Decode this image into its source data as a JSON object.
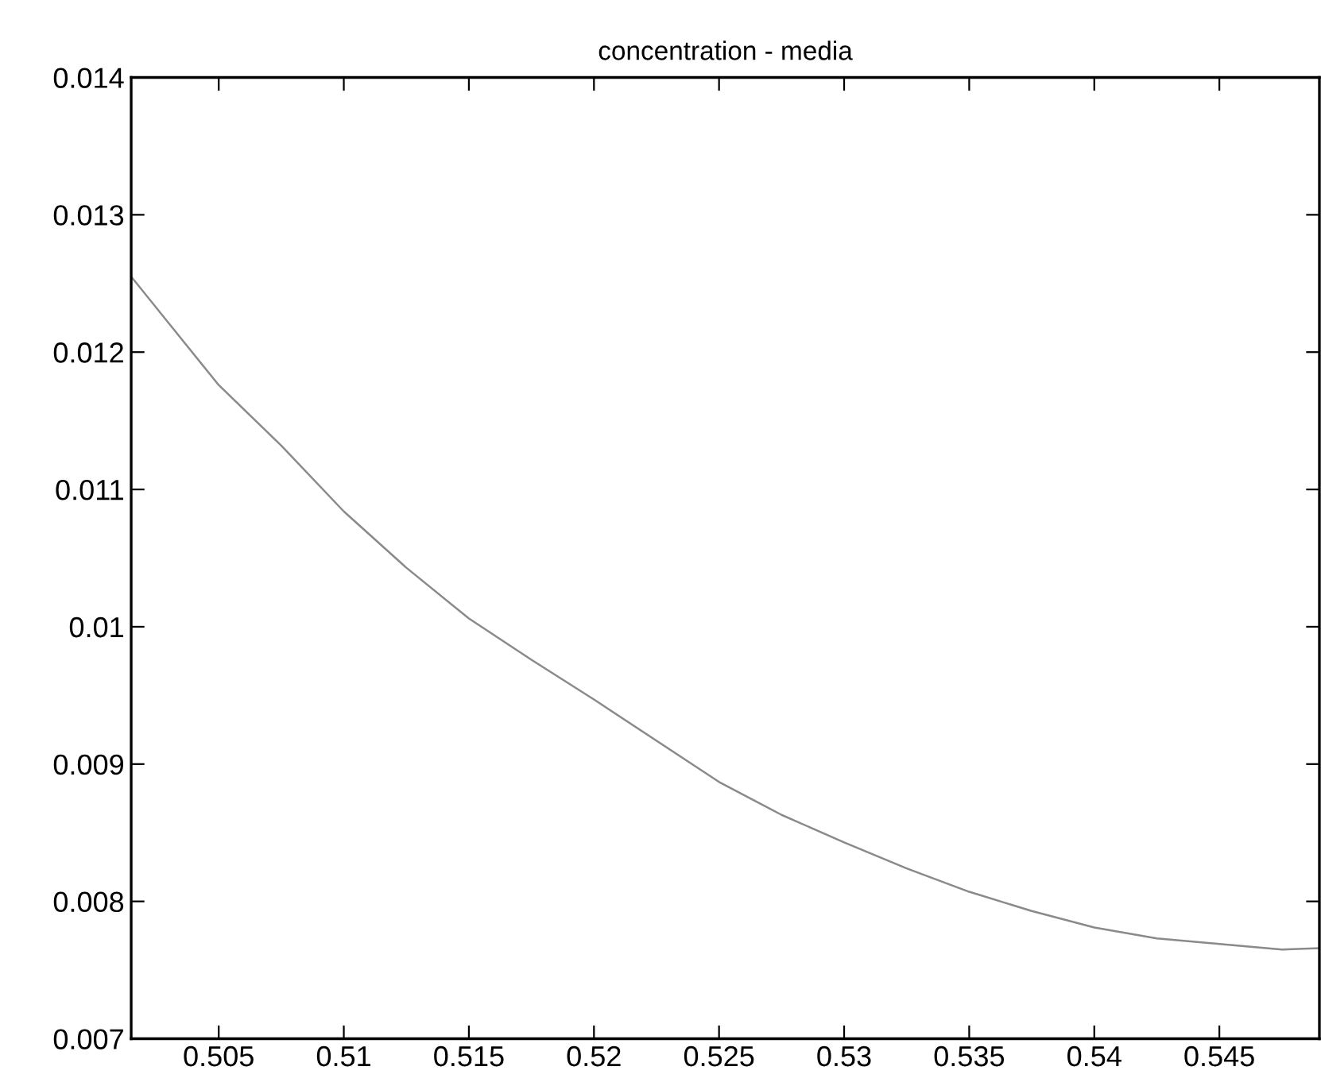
{
  "chart_data": {
    "type": "line",
    "title": "concentration - media",
    "series": [
      {
        "color": "#8a8a8a",
        "x": [
          0.5015,
          0.505,
          0.5075,
          0.51,
          0.5125,
          0.515,
          0.5175,
          0.52,
          0.525,
          0.5275,
          0.53,
          0.5325,
          0.535,
          0.5375,
          0.54,
          0.5425,
          0.545,
          0.5475,
          0.549
        ],
        "values": [
          0.01255,
          0.01176,
          0.01132,
          0.01084,
          0.01043,
          0.01006,
          0.00976,
          0.00947,
          0.00887,
          0.00863,
          0.00843,
          0.00824,
          0.00807,
          0.00793,
          0.00781,
          0.00773,
          0.00769,
          0.00765,
          0.00766
        ]
      }
    ],
    "xlim": [
      0.5015,
      0.549
    ],
    "ylim": [
      0.007,
      0.014
    ],
    "xticks": [
      0.505,
      0.51,
      0.515,
      0.52,
      0.525,
      0.53,
      0.535,
      0.54,
      0.545
    ],
    "yticks": [
      0.007,
      0.008,
      0.009,
      0.01,
      0.011,
      0.012,
      0.013,
      0.014
    ],
    "grid": false,
    "legend": false,
    "marker": "none",
    "line_style": "solid"
  }
}
